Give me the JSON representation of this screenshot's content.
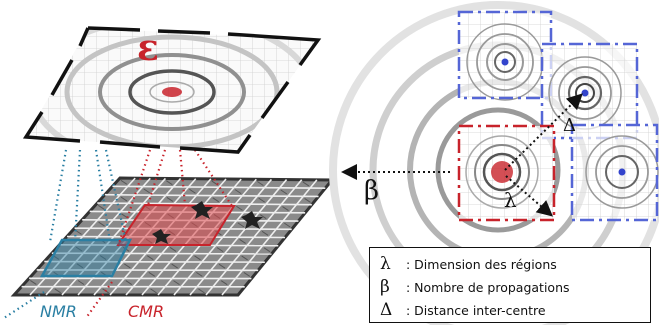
{
  "top_plane": {
    "symbol": "ε"
  },
  "labels": {
    "nmr": "NMR",
    "cmr": "CMR"
  },
  "right_panel": {
    "beta": "β",
    "delta": "Δ",
    "lambda": "λ"
  },
  "legend": [
    {
      "symbol": "λ",
      "text": ": Dimension des régions"
    },
    {
      "symbol": "β",
      "text": ": Nombre de propagations"
    },
    {
      "symbol": "Δ",
      "text": ": Distance inter-centre"
    }
  ],
  "colors": {
    "red": "#c8232b",
    "blue": "#5566d6",
    "teal": "#2a7fa3"
  }
}
